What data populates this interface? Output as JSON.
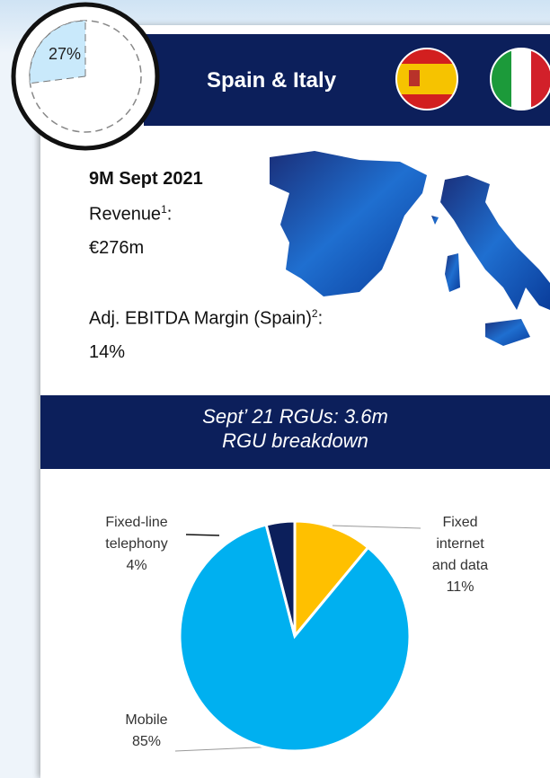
{
  "header": {
    "title": "Spain & Italy",
    "share": {
      "value": 27,
      "label": "27%"
    }
  },
  "stats": {
    "period": "9M Sept 2021",
    "revenue": {
      "text": "Revenue",
      "sup": "1",
      "suffix": ":",
      "value": "€276m"
    },
    "margin": {
      "text": "Adj. EBITDA Margin (Spain)",
      "sup": "2",
      "suffix": ":",
      "value": "14%"
    }
  },
  "rgu": {
    "line1": "Sept’ 21 RGUs: 3.6m",
    "line2": "RGU breakdown"
  },
  "chart_data": {
    "type": "pie",
    "categories": [
      "Fixed internet and data",
      "Mobile",
      "Fixed-line telephony"
    ],
    "values": [
      11,
      85,
      4
    ],
    "value_labels": [
      "11%",
      "85%",
      "4%"
    ],
    "colors": [
      "#ffc000",
      "#00b0f0",
      "#0c1f5b"
    ]
  }
}
